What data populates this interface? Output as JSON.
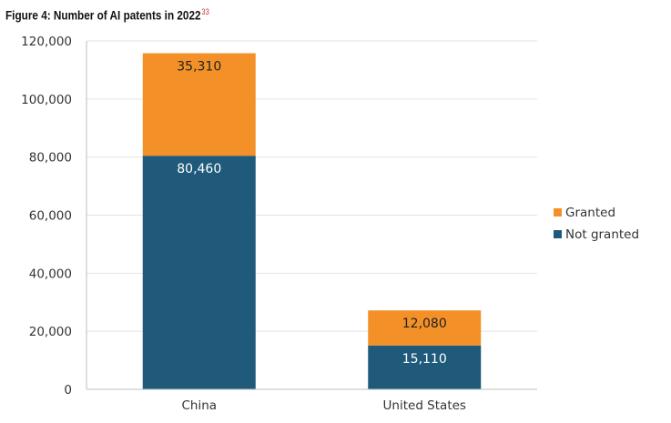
{
  "figure": {
    "title": "Figure 4: Number of AI patents in 2022",
    "footnote": "33"
  },
  "chart_data": {
    "type": "bar",
    "stacked": true,
    "categories": [
      "China",
      "United States"
    ],
    "series": [
      {
        "name": "Not granted",
        "values": [
          80460,
          15110
        ],
        "labels": [
          "80,460",
          "15,110"
        ],
        "color": "#1f5a7a"
      },
      {
        "name": "Granted",
        "values": [
          35310,
          12080
        ],
        "labels": [
          "35,310",
          "12,080"
        ],
        "color": "#f39128"
      }
    ],
    "ylim": [
      0,
      120000
    ],
    "yticks": [
      0,
      20000,
      40000,
      60000,
      80000,
      100000,
      120000
    ],
    "ytick_labels": [
      "0",
      "20,000",
      "40,000",
      "60,000",
      "80,000",
      "100,000",
      "120,000"
    ],
    "legend_position": "right",
    "grid": true
  }
}
